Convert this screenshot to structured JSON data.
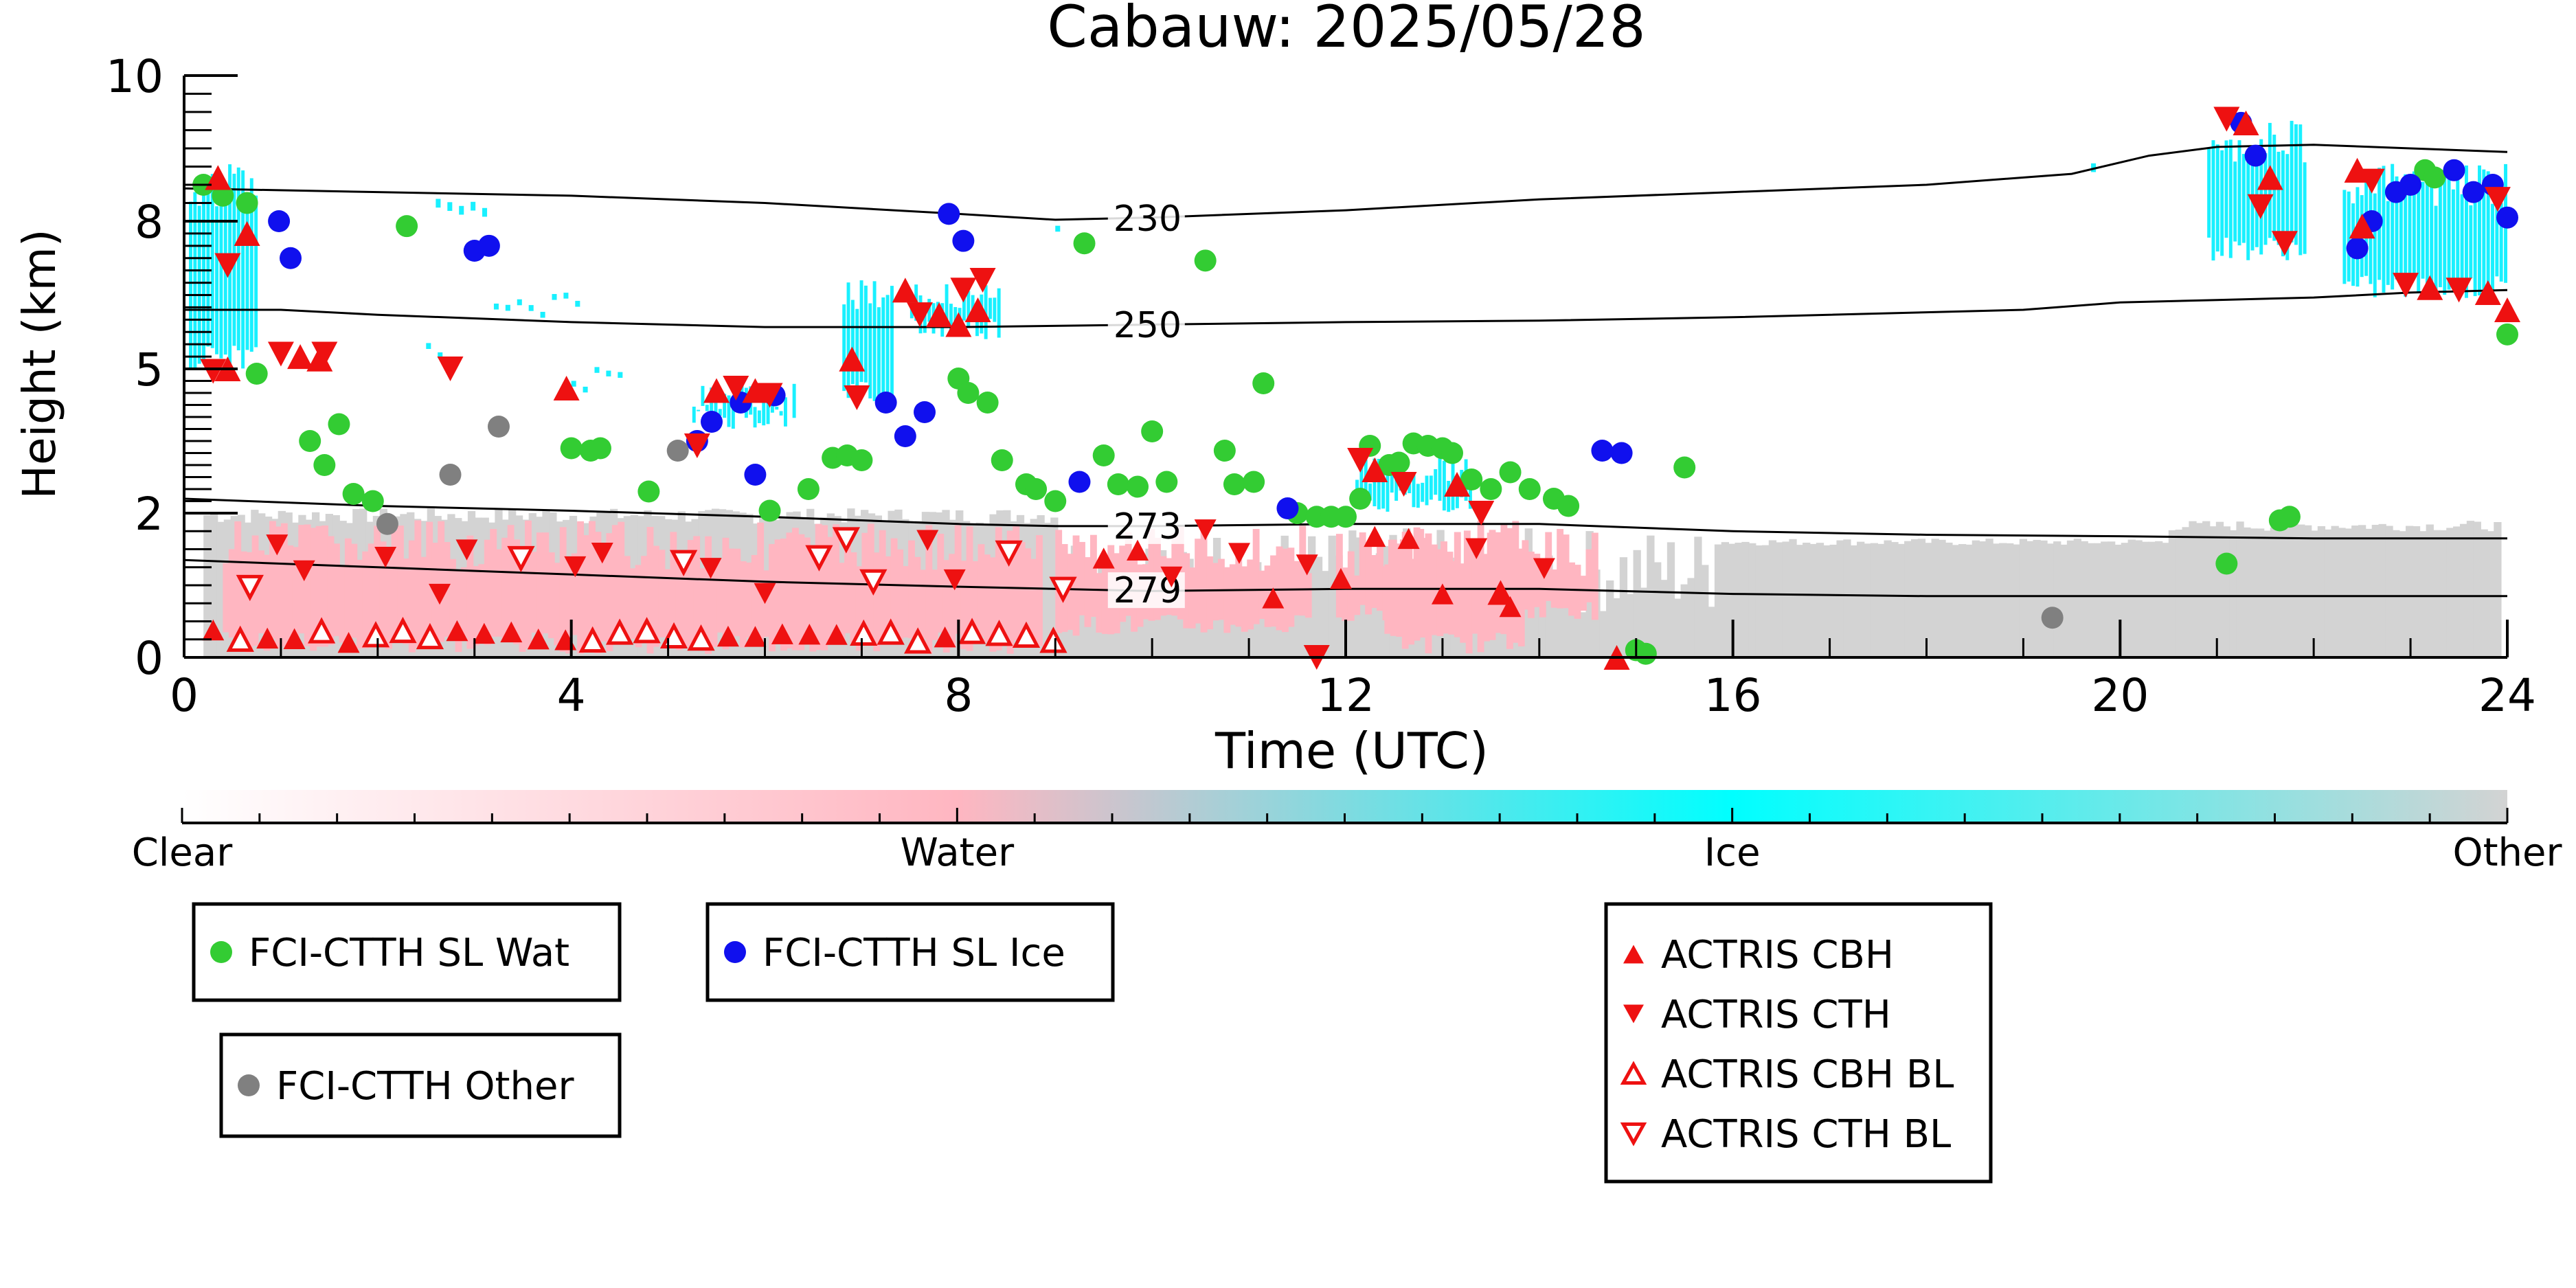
{
  "chart_data": {
    "type": "scatter",
    "title": "Cabauw: 2025/05/28",
    "xlabel": "Time (UTC)",
    "ylabel": "Height (km)",
    "xlim": [
      0,
      24
    ],
    "ylim": [
      0,
      10
    ],
    "x_ticks": [
      0,
      4,
      8,
      12,
      16,
      20,
      24
    ],
    "y_ticks": [
      0,
      2,
      5,
      8,
      10
    ],
    "y_scale": "nonlinear",
    "grid": false,
    "isotherms": [
      {
        "label": "230",
        "points": [
          [
            0,
            8.45
          ],
          [
            2,
            8.4
          ],
          [
            4,
            8.35
          ],
          [
            6,
            8.25
          ],
          [
            8,
            8.1
          ],
          [
            9,
            8.02
          ],
          [
            10,
            8.05
          ],
          [
            12,
            8.15
          ],
          [
            14,
            8.3
          ],
          [
            16,
            8.4
          ],
          [
            18,
            8.5
          ],
          [
            19.5,
            8.65
          ],
          [
            20.3,
            8.9
          ],
          [
            21,
            9.02
          ],
          [
            22,
            9.05
          ],
          [
            23,
            9.0
          ],
          [
            24,
            8.95
          ]
        ]
      },
      {
        "label": "250",
        "points": [
          [
            0,
            6.2
          ],
          [
            1,
            6.2
          ],
          [
            2,
            6.1
          ],
          [
            4,
            5.95
          ],
          [
            6,
            5.85
          ],
          [
            8,
            5.85
          ],
          [
            10,
            5.9
          ],
          [
            12,
            5.95
          ],
          [
            14,
            5.98
          ],
          [
            16,
            6.05
          ],
          [
            18,
            6.15
          ],
          [
            19,
            6.2
          ],
          [
            20,
            6.35
          ],
          [
            21,
            6.4
          ],
          [
            22,
            6.45
          ],
          [
            23,
            6.55
          ],
          [
            24,
            6.6
          ]
        ]
      },
      {
        "label": "273",
        "points": [
          [
            0,
            2.3
          ],
          [
            2,
            2.15
          ],
          [
            4,
            2.05
          ],
          [
            6,
            1.95
          ],
          [
            8,
            1.85
          ],
          [
            9,
            1.82
          ],
          [
            10,
            1.82
          ],
          [
            12,
            1.85
          ],
          [
            14,
            1.85
          ],
          [
            16,
            1.75
          ],
          [
            18,
            1.7
          ],
          [
            20,
            1.68
          ],
          [
            22,
            1.65
          ],
          [
            24,
            1.65
          ]
        ]
      },
      {
        "label": "279",
        "points": [
          [
            0,
            1.35
          ],
          [
            2,
            1.25
          ],
          [
            4,
            1.15
          ],
          [
            6,
            1.05
          ],
          [
            8,
            0.98
          ],
          [
            9,
            0.95
          ],
          [
            10,
            0.92
          ],
          [
            12,
            0.95
          ],
          [
            14,
            0.95
          ],
          [
            16,
            0.88
          ],
          [
            18,
            0.85
          ],
          [
            20,
            0.85
          ],
          [
            22,
            0.85
          ],
          [
            24,
            0.85
          ]
        ]
      }
    ],
    "series": [
      {
        "name": "FCI-CTTH SL Wat",
        "marker": "circle",
        "color": "#33cc33",
        "points": [
          [
            0.2,
            8.5
          ],
          [
            0.4,
            8.35
          ],
          [
            0.65,
            8.25
          ],
          [
            0.75,
            4.9
          ],
          [
            1.3,
            3.5
          ],
          [
            1.45,
            3.0
          ],
          [
            1.6,
            3.85
          ],
          [
            1.75,
            2.4
          ],
          [
            1.95,
            2.25
          ],
          [
            2.3,
            7.9
          ],
          [
            4.0,
            3.35
          ],
          [
            4.2,
            3.3
          ],
          [
            4.3,
            3.35
          ],
          [
            4.8,
            2.45
          ],
          [
            6.05,
            2.05
          ],
          [
            6.45,
            2.5
          ],
          [
            6.7,
            3.15
          ],
          [
            6.85,
            3.2
          ],
          [
            7.0,
            3.1
          ],
          [
            8.0,
            4.8
          ],
          [
            8.1,
            4.5
          ],
          [
            8.3,
            4.3
          ],
          [
            8.45,
            3.1
          ],
          [
            8.7,
            2.6
          ],
          [
            8.8,
            2.5
          ],
          [
            9.0,
            2.25
          ],
          [
            9.3,
            7.55
          ],
          [
            9.5,
            3.2
          ],
          [
            9.65,
            2.6
          ],
          [
            9.85,
            2.55
          ],
          [
            10.0,
            3.7
          ],
          [
            10.15,
            2.65
          ],
          [
            10.55,
            7.2
          ],
          [
            10.75,
            3.3
          ],
          [
            10.85,
            2.6
          ],
          [
            11.05,
            2.65
          ],
          [
            11.15,
            4.7
          ],
          [
            11.5,
            2.0
          ],
          [
            11.7,
            1.95
          ],
          [
            11.85,
            1.95
          ],
          [
            12.0,
            1.95
          ],
          [
            12.15,
            2.3
          ],
          [
            12.25,
            3.4
          ],
          [
            12.45,
            3.0
          ],
          [
            12.55,
            3.05
          ],
          [
            12.7,
            3.45
          ],
          [
            12.85,
            3.4
          ],
          [
            13.0,
            3.35
          ],
          [
            13.1,
            3.25
          ],
          [
            13.3,
            2.7
          ],
          [
            13.5,
            2.5
          ],
          [
            13.7,
            2.85
          ],
          [
            13.9,
            2.5
          ],
          [
            14.15,
            2.3
          ],
          [
            14.3,
            2.15
          ],
          [
            15.0,
            0.1
          ],
          [
            15.1,
            0.05
          ],
          [
            15.5,
            2.95
          ],
          [
            21.1,
            1.3
          ],
          [
            21.65,
            1.9
          ],
          [
            21.75,
            1.95
          ],
          [
            23.15,
            8.7
          ],
          [
            23.25,
            8.6
          ],
          [
            24.0,
            5.7
          ]
        ]
      },
      {
        "name": "FCI-CTTH SL Ice",
        "marker": "circle",
        "color": "#1010ee",
        "points": [
          [
            0.98,
            8.0
          ],
          [
            1.1,
            7.25
          ],
          [
            3.0,
            7.4
          ],
          [
            3.15,
            7.5
          ],
          [
            5.3,
            3.5
          ],
          [
            5.45,
            3.9
          ],
          [
            5.75,
            4.3
          ],
          [
            5.9,
            2.8
          ],
          [
            6.1,
            4.45
          ],
          [
            7.25,
            4.3
          ],
          [
            7.45,
            3.6
          ],
          [
            7.65,
            4.1
          ],
          [
            7.9,
            8.1
          ],
          [
            8.05,
            7.6
          ],
          [
            9.25,
            2.65
          ],
          [
            11.4,
            2.1
          ],
          [
            14.65,
            3.3
          ],
          [
            14.85,
            3.25
          ],
          [
            21.25,
            9.35
          ],
          [
            21.4,
            8.9
          ],
          [
            22.45,
            7.45
          ],
          [
            22.6,
            8.0
          ],
          [
            22.85,
            8.4
          ],
          [
            23.0,
            8.5
          ],
          [
            23.45,
            8.7
          ],
          [
            23.65,
            8.4
          ],
          [
            23.85,
            8.5
          ],
          [
            24.0,
            8.05
          ]
        ]
      },
      {
        "name": "FCI-CTTH Other",
        "marker": "circle",
        "color": "#808080",
        "points": [
          [
            2.1,
            1.85
          ],
          [
            2.75,
            2.8
          ],
          [
            3.25,
            3.8
          ],
          [
            5.1,
            3.3
          ],
          [
            19.3,
            0.55
          ]
        ]
      }
    ],
    "legend": [
      "FCI-CTTH SL Wat",
      "FCI-CTTH SL Ice",
      "FCI-CTTH Other",
      "ACTRIS CBH",
      "ACTRIS CTH",
      "ACTRIS CBH BL",
      "ACTRIS CTH BL"
    ],
    "legend_markers": {
      "ACTRIS CBH": {
        "marker": "triangle-up",
        "color": "#ee1111",
        "fill": true
      },
      "ACTRIS CTH": {
        "marker": "triangle-down",
        "color": "#ee1111",
        "fill": true
      },
      "ACTRIS CBH BL": {
        "marker": "triangle-up",
        "color": "#ee1111",
        "fill": false
      },
      "ACTRIS CTH BL": {
        "marker": "triangle-down",
        "color": "#ee1111",
        "fill": false
      }
    },
    "colorbar": {
      "labels": [
        "Clear",
        "Water",
        "Ice",
        "Other"
      ],
      "colors": [
        "#ffffff",
        "#ffb6c1",
        "#00ffff",
        "#d3d3d3"
      ]
    },
    "background_colors": {
      "water": "#ffb6c1",
      "ice": "#19f0ff",
      "other": "#d3d3d3"
    }
  }
}
